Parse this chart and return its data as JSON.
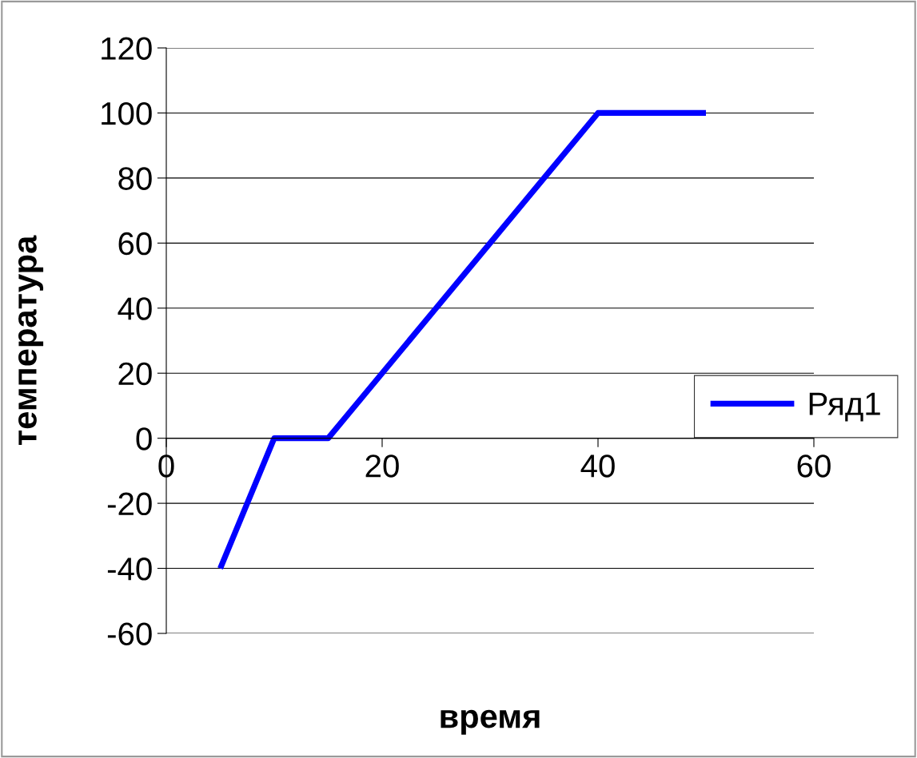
{
  "chart_data": {
    "type": "line",
    "xlabel": "время",
    "ylabel": "температура",
    "series": [
      {
        "name": "Ряд1",
        "color": "#0000ff",
        "x": [
          5,
          10,
          15,
          20,
          25,
          30,
          35,
          40,
          50
        ],
        "values": [
          -40,
          0,
          0,
          20,
          40,
          60,
          80,
          100,
          100
        ]
      }
    ],
    "xlim": [
      0,
      60
    ],
    "xticks": [
      0,
      20,
      40,
      60
    ],
    "ylim": [
      -60,
      120
    ],
    "yticks": [
      -60,
      -40,
      -20,
      0,
      20,
      40,
      60,
      80,
      100,
      120
    ],
    "grid": "y",
    "legend": "right",
    "marker": "none",
    "line_style": "solid"
  }
}
